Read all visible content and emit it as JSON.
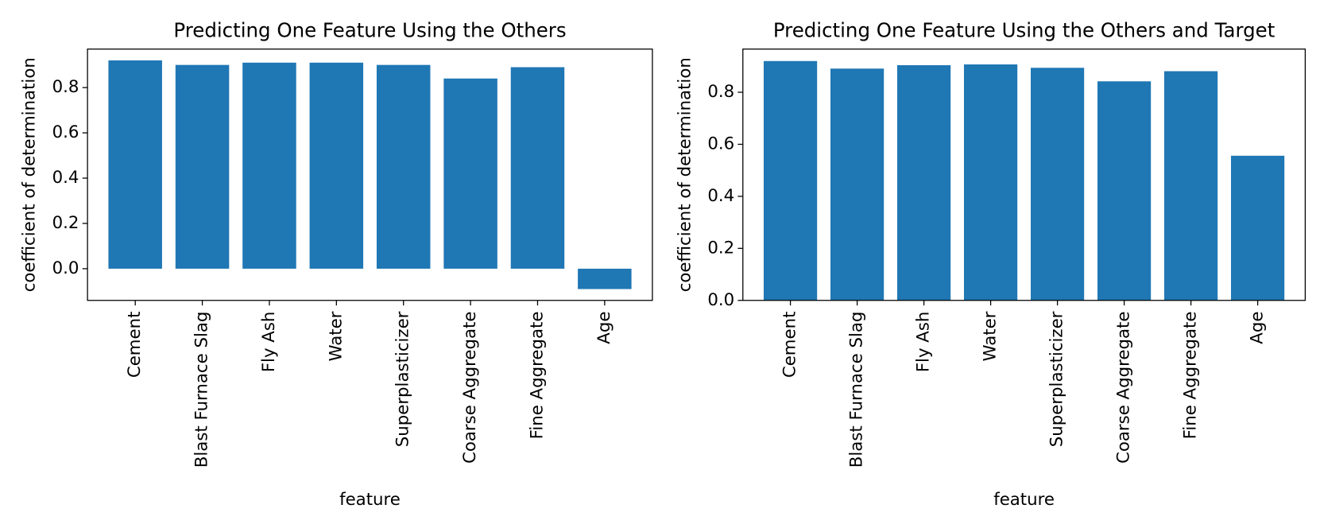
{
  "chart_data": [
    {
      "type": "bar",
      "title": "Predicting One Feature Using the Others",
      "x_label": "feature",
      "y_label": "coefficient of determination",
      "categories": [
        "Cement",
        "Blast Furnace Slag",
        "Fly Ash",
        "Water",
        "Superplasticizer",
        "Coarse Aggregate",
        "Fine Aggregate",
        "Age"
      ],
      "values": [
        0.92,
        0.9,
        0.91,
        0.91,
        0.9,
        0.84,
        0.89,
        -0.09
      ],
      "color": "#1f77b4",
      "ylim": [
        -0.14,
        0.97
      ],
      "yticks": [
        {
          "value": 0,
          "label": "0.0"
        },
        0.2,
        0.4,
        0.6,
        0.8
      ],
      "grid": false
    },
    {
      "type": "bar",
      "title": "Predicting One Feature Using the Others and Target",
      "x_label": "feature",
      "y_label": "coefficient of determination",
      "categories": [
        "Cement",
        "Blast Furnace Slag",
        "Fly Ash",
        "Water",
        "Superplasticizer",
        "Coarse Aggregate",
        "Fine Aggregate",
        "Age"
      ],
      "values": [
        0.92,
        0.891,
        0.904,
        0.907,
        0.894,
        0.842,
        0.881,
        0.556
      ],
      "color": "#1f77b4",
      "ylim": [
        0,
        0.966
      ],
      "yticks": [
        {
          "value": 0,
          "label": "0.0"
        },
        0.2,
        0.4,
        0.6,
        0.8
      ],
      "grid": false
    }
  ]
}
